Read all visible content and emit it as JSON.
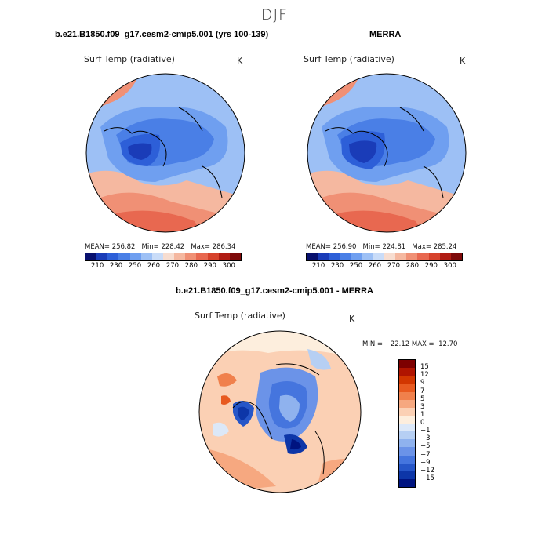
{
  "title": "DJF",
  "panels": {
    "model": {
      "title": "b.e21.B1850.f09_g17.cesm2-cmip5.001 (yrs 100-139)",
      "field": "Surf Temp (radiative)",
      "units": "K",
      "stats": "MEAN= 256.82   Min= 228.42   Max= 286.34"
    },
    "obs": {
      "title": "MERRA",
      "field": "Surf Temp (radiative)",
      "units": "K",
      "stats": "MEAN= 256.90   Min= 224.81   Max= 285.24"
    },
    "diff": {
      "title": "b.e21.B1850.f09_g17.cesm2-cmip5.001 - MERRA",
      "field": "Surf Temp (radiative)",
      "units": "K",
      "stats": "MIN = −22.12 MAX =  12.70"
    }
  },
  "colorbar_abs": {
    "colors": [
      "#08106e",
      "#1a3cb8",
      "#2d5fd8",
      "#4a7fe6",
      "#6f9ff0",
      "#9dc0f5",
      "#c9dcf8",
      "#f7ddd0",
      "#f5b8a0",
      "#f09075",
      "#e86850",
      "#d6422c",
      "#b01d14",
      "#7e0a0a"
    ],
    "ticks": [
      "210",
      "230",
      "250",
      "260",
      "270",
      "280",
      "290",
      "300"
    ]
  },
  "colorbar_diff": {
    "colors": [
      "#7d0000",
      "#b01400",
      "#d23600",
      "#e85a20",
      "#f0804c",
      "#f6a880",
      "#fbd0b4",
      "#fdeedd",
      "#dce8f8",
      "#b6cff3",
      "#8fb2ee",
      "#6b93e8",
      "#4575de",
      "#2656c8",
      "#0d36a8",
      "#001480"
    ],
    "ticks": [
      "15",
      "12",
      "9",
      "7",
      "5",
      "3",
      "1",
      "0",
      "−1",
      "−3",
      "−5",
      "−7",
      "−9",
      "−12",
      "−15"
    ]
  }
}
